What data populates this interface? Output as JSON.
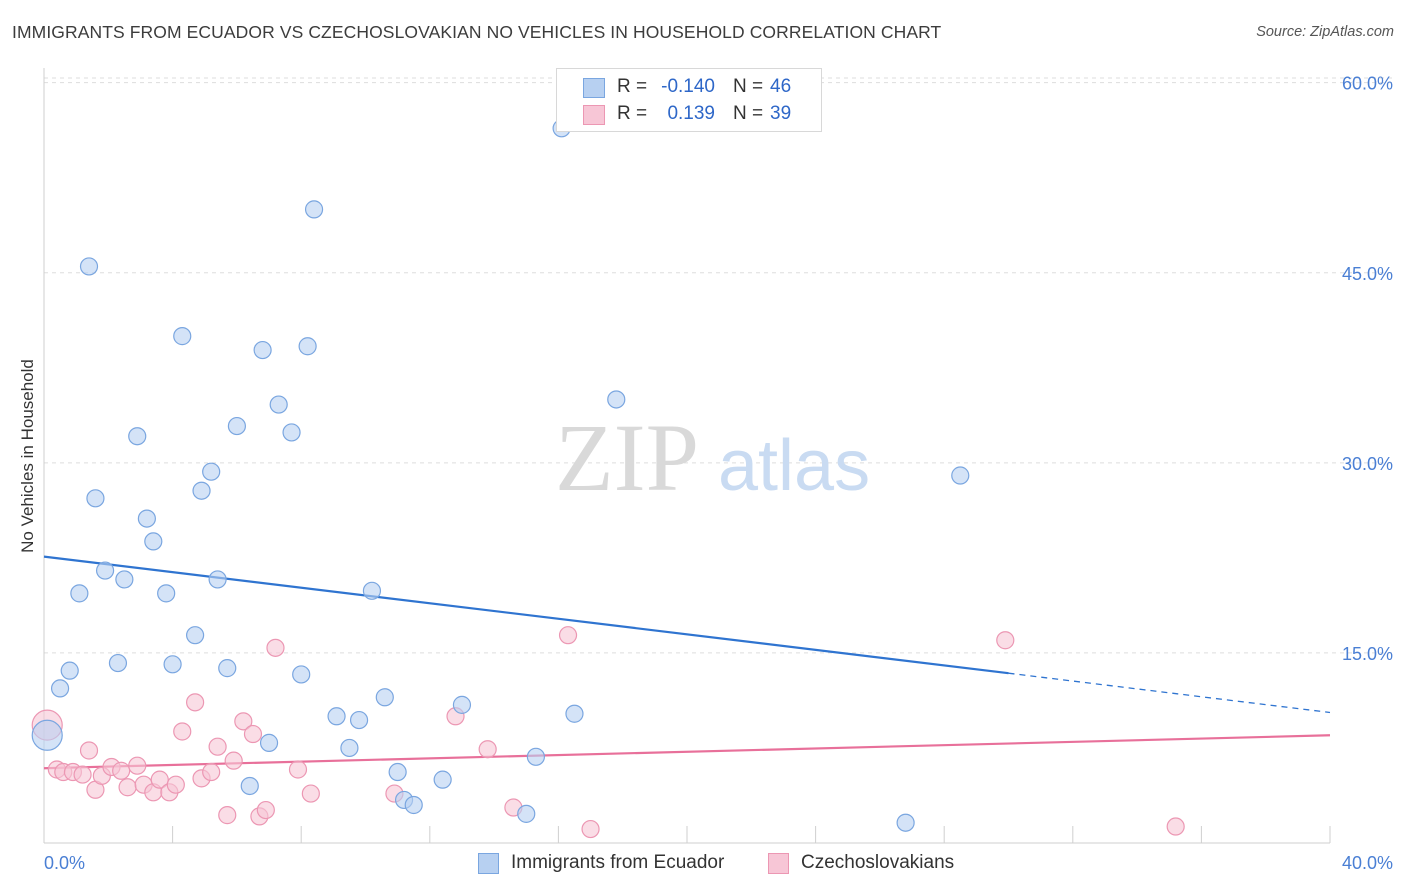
{
  "title": "IMMIGRANTS FROM ECUADOR VS CZECHOSLOVAKIAN NO VEHICLES IN HOUSEHOLD CORRELATION CHART",
  "source": "Source: ZipAtlas.com",
  "watermark": {
    "zip": "ZIP",
    "atlas": "atlas"
  },
  "legend": {
    "rows": [
      {
        "r_label": "R =",
        "r_value": "-0.140",
        "n_label": "N =",
        "n_value": "46"
      },
      {
        "r_label": "R =",
        "r_value": "0.139",
        "n_label": "N =",
        "n_value": "39"
      }
    ]
  },
  "bottom_legend": [
    "Immigrants from Ecuador",
    "Czechoslovakians"
  ],
  "colors": {
    "blue_fill": "#b7d0f1",
    "blue_stroke": "#7aa6e0",
    "blue_line": "#2f74d0",
    "pink_fill": "#f7c6d6",
    "pink_stroke": "#ec97b3",
    "pink_line": "#e8709a",
    "grid": "#dddddd",
    "tick_text": "#4a7fd4"
  },
  "chart_data": {
    "type": "scatter",
    "title": "IMMIGRANTS FROM ECUADOR VS CZECHOSLOVAKIAN NO VEHICLES IN HOUSEHOLD CORRELATION CHART",
    "xlabel": "",
    "ylabel": "No Vehicles in Household",
    "xlim": [
      0,
      40
    ],
    "ylim": [
      0,
      61
    ],
    "x_tick_labels": [
      "0.0%",
      "40.0%"
    ],
    "y_ticks": [
      15,
      30,
      45,
      60
    ],
    "y_tick_labels": [
      "15.0%",
      "30.0%",
      "45.0%",
      "60.0%"
    ],
    "grid": true,
    "legend_position": "top-center",
    "series": [
      {
        "name": "Immigrants from Ecuador",
        "color": "#b7d0f1",
        "points": [
          [
            0.1,
            8.5
          ],
          [
            0.5,
            12.2
          ],
          [
            0.8,
            13.6
          ],
          [
            1.1,
            19.7
          ],
          [
            1.4,
            45.5
          ],
          [
            1.6,
            27.2
          ],
          [
            1.9,
            21.5
          ],
          [
            2.3,
            14.2
          ],
          [
            2.5,
            20.8
          ],
          [
            2.9,
            32.1
          ],
          [
            3.2,
            25.6
          ],
          [
            3.4,
            23.8
          ],
          [
            3.8,
            19.7
          ],
          [
            4.0,
            14.1
          ],
          [
            4.3,
            40.0
          ],
          [
            4.7,
            16.4
          ],
          [
            4.9,
            27.8
          ],
          [
            5.2,
            29.3
          ],
          [
            5.4,
            20.8
          ],
          [
            5.7,
            13.8
          ],
          [
            6.0,
            32.9
          ],
          [
            6.4,
            4.5
          ],
          [
            6.8,
            38.9
          ],
          [
            7.0,
            7.9
          ],
          [
            7.3,
            34.6
          ],
          [
            7.7,
            32.4
          ],
          [
            8.0,
            13.3
          ],
          [
            8.2,
            39.2
          ],
          [
            8.4,
            50.0
          ],
          [
            9.1,
            10.0
          ],
          [
            9.5,
            7.5
          ],
          [
            9.8,
            9.7
          ],
          [
            10.2,
            19.9
          ],
          [
            10.6,
            11.5
          ],
          [
            11.0,
            5.6
          ],
          [
            11.2,
            3.4
          ],
          [
            11.5,
            3.0
          ],
          [
            12.4,
            5.0
          ],
          [
            13.0,
            10.9
          ],
          [
            15.0,
            2.3
          ],
          [
            15.3,
            6.8
          ],
          [
            16.1,
            56.4
          ],
          [
            16.5,
            10.2
          ],
          [
            17.8,
            35.0
          ],
          [
            26.8,
            1.6
          ],
          [
            28.5,
            29.0
          ]
        ]
      },
      {
        "name": "Czechoslovakians",
        "color": "#f7c6d6",
        "points": [
          [
            0.1,
            9.3
          ],
          [
            0.4,
            5.8
          ],
          [
            0.6,
            5.6
          ],
          [
            0.9,
            5.6
          ],
          [
            1.2,
            5.4
          ],
          [
            1.4,
            7.3
          ],
          [
            1.6,
            4.2
          ],
          [
            1.8,
            5.3
          ],
          [
            2.1,
            6.0
          ],
          [
            2.4,
            5.7
          ],
          [
            2.6,
            4.4
          ],
          [
            2.9,
            6.1
          ],
          [
            3.1,
            4.6
          ],
          [
            3.4,
            4.0
          ],
          [
            3.6,
            5.0
          ],
          [
            3.9,
            4.0
          ],
          [
            4.1,
            4.6
          ],
          [
            4.3,
            8.8
          ],
          [
            4.7,
            11.1
          ],
          [
            4.9,
            5.1
          ],
          [
            5.2,
            5.6
          ],
          [
            5.4,
            7.6
          ],
          [
            5.7,
            2.2
          ],
          [
            5.9,
            6.5
          ],
          [
            6.2,
            9.6
          ],
          [
            6.5,
            8.6
          ],
          [
            6.7,
            2.1
          ],
          [
            6.9,
            2.6
          ],
          [
            7.2,
            15.4
          ],
          [
            7.9,
            5.8
          ],
          [
            8.3,
            3.9
          ],
          [
            10.9,
            3.9
          ],
          [
            12.8,
            10.0
          ],
          [
            13.8,
            7.4
          ],
          [
            14.6,
            2.8
          ],
          [
            16.3,
            16.4
          ],
          [
            17.0,
            1.1
          ],
          [
            29.9,
            16.0
          ],
          [
            35.2,
            1.3
          ]
        ]
      }
    ],
    "trend_lines": [
      {
        "series": "Immigrants from Ecuador",
        "x0": 0,
        "y0": 22.6,
        "x1": 30.0,
        "y1": 13.4,
        "dashed_to_x": 40,
        "dashed_to_y": 10.3
      },
      {
        "series": "Czechoslovakians",
        "x0": 0,
        "y0": 5.9,
        "x1": 40,
        "y1": 8.5
      }
    ]
  }
}
